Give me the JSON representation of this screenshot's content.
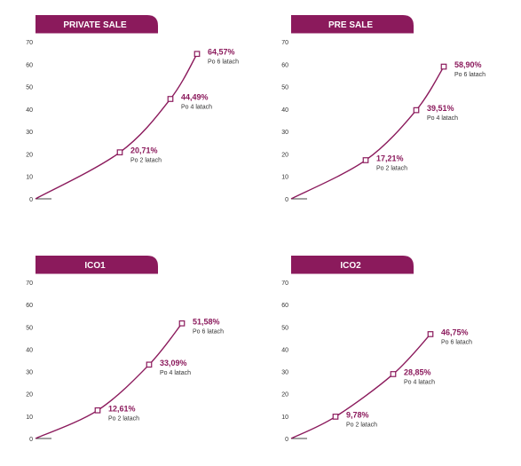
{
  "theme": {
    "accent": "#8b1a5c",
    "axis": "#444444",
    "text": "#333333",
    "marker_fill": "#ffffff"
  },
  "chart_data": [
    {
      "type": "line",
      "title": "PRIVATE SALE",
      "yticks": [
        0,
        10,
        20,
        30,
        40,
        50,
        60,
        70
      ],
      "ylim": [
        0,
        70
      ],
      "x": [
        0,
        2,
        4,
        6
      ],
      "values": [
        0,
        20.71,
        44.49,
        64.57
      ],
      "annotations": [
        {
          "value": "20,71%",
          "label": "Po 2 latach"
        },
        {
          "value": "44,49%",
          "label": "Po 4 latach"
        },
        {
          "value": "64,57%",
          "label": "Po 6 latach"
        }
      ],
      "grid": false,
      "legend": "none"
    },
    {
      "type": "line",
      "title": "PRE SALE",
      "yticks": [
        0,
        10,
        20,
        30,
        40,
        50,
        60,
        70
      ],
      "ylim": [
        0,
        70
      ],
      "x": [
        0,
        2,
        4,
        6
      ],
      "values": [
        0,
        17.21,
        39.51,
        58.9
      ],
      "annotations": [
        {
          "value": "17,21%",
          "label": "Po 2 latach"
        },
        {
          "value": "39,51%",
          "label": "Po 4 latach"
        },
        {
          "value": "58,90%",
          "label": "Po 6 latach"
        }
      ],
      "grid": false,
      "legend": "none"
    },
    {
      "type": "line",
      "title": "ICO1",
      "yticks": [
        0,
        10,
        20,
        30,
        40,
        50,
        60,
        70
      ],
      "ylim": [
        0,
        70
      ],
      "x": [
        0,
        2,
        4,
        6
      ],
      "values": [
        0,
        12.61,
        33.09,
        51.58
      ],
      "annotations": [
        {
          "value": "12,61%",
          "label": "Po 2 latach"
        },
        {
          "value": "33,09%",
          "label": "Po 4 latach"
        },
        {
          "value": "51,58%",
          "label": "Po 6 latach"
        }
      ],
      "grid": false,
      "legend": "none"
    },
    {
      "type": "line",
      "title": "ICO2",
      "yticks": [
        0,
        10,
        20,
        30,
        40,
        50,
        60,
        70
      ],
      "ylim": [
        0,
        70
      ],
      "x": [
        0,
        2,
        4,
        6
      ],
      "values": [
        0,
        9.78,
        28.85,
        46.75
      ],
      "annotations": [
        {
          "value": "9,78%",
          "label": "Po 2 latach"
        },
        {
          "value": "28,85%",
          "label": "Po 4 latach"
        },
        {
          "value": "46,75%",
          "label": "Po 6 latach"
        }
      ],
      "grid": false,
      "legend": "none"
    }
  ]
}
